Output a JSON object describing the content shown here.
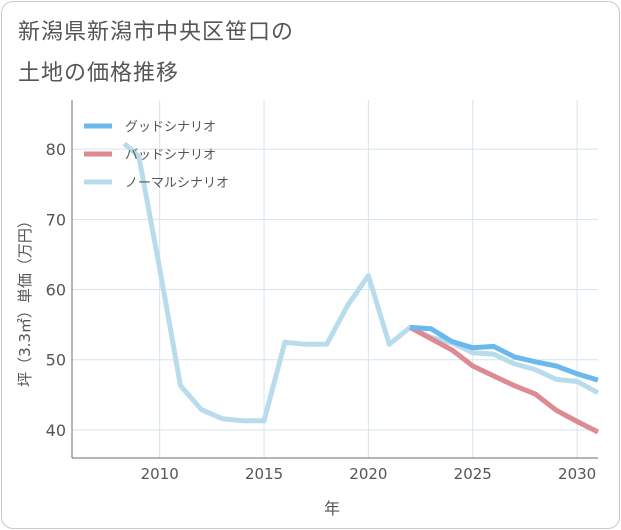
{
  "title_line1": "新潟県新潟市中央区笹口の",
  "title_line2": "土地の価格推移",
  "chart_data": {
    "type": "line",
    "xlabel": "年",
    "ylabel": "坪（3.3㎡）単価（万円）",
    "xlim": [
      2005.8,
      2031
    ],
    "ylim": [
      36,
      87
    ],
    "x_ticks": [
      2010,
      2015,
      2020,
      2025,
      2030
    ],
    "y_ticks": [
      40,
      50,
      60,
      70,
      80
    ],
    "grid": true,
    "legend_position": "top-left",
    "series": [
      {
        "name": "グッドシナリオ",
        "color": "#6ab8ee",
        "x": [
          2022,
          2023,
          2024,
          2025,
          2026,
          2027,
          2028,
          2029,
          2030,
          2031
        ],
        "y": [
          54.6,
          54.4,
          52.6,
          51.7,
          51.9,
          50.4,
          49.7,
          49.1,
          48.0,
          47.1
        ]
      },
      {
        "name": "バッドシナリオ",
        "color": "#dd8a90",
        "x": [
          2022,
          2023,
          2024,
          2025,
          2026,
          2027,
          2028,
          2029,
          2030,
          2031
        ],
        "y": [
          54.6,
          53.0,
          51.4,
          49.1,
          47.7,
          46.3,
          45.1,
          42.8,
          41.2,
          39.7
        ]
      },
      {
        "name": "ノーマルシナリオ",
        "color": "#b9dcec",
        "x": [
          2008.3,
          2009,
          2010,
          2011,
          2012,
          2013,
          2014,
          2015,
          2016,
          2017,
          2018,
          2019,
          2020,
          2021,
          2022,
          2023,
          2024,
          2025,
          2026,
          2027,
          2028,
          2029,
          2030,
          2031
        ],
        "y": [
          80.8,
          79.0,
          63.0,
          46.3,
          42.9,
          41.6,
          41.3,
          41.3,
          52.5,
          52.2,
          52.2,
          57.7,
          62.0,
          52.2,
          54.6,
          53.2,
          52.4,
          51.0,
          50.8,
          49.4,
          48.6,
          47.2,
          46.9,
          45.3
        ]
      }
    ]
  }
}
